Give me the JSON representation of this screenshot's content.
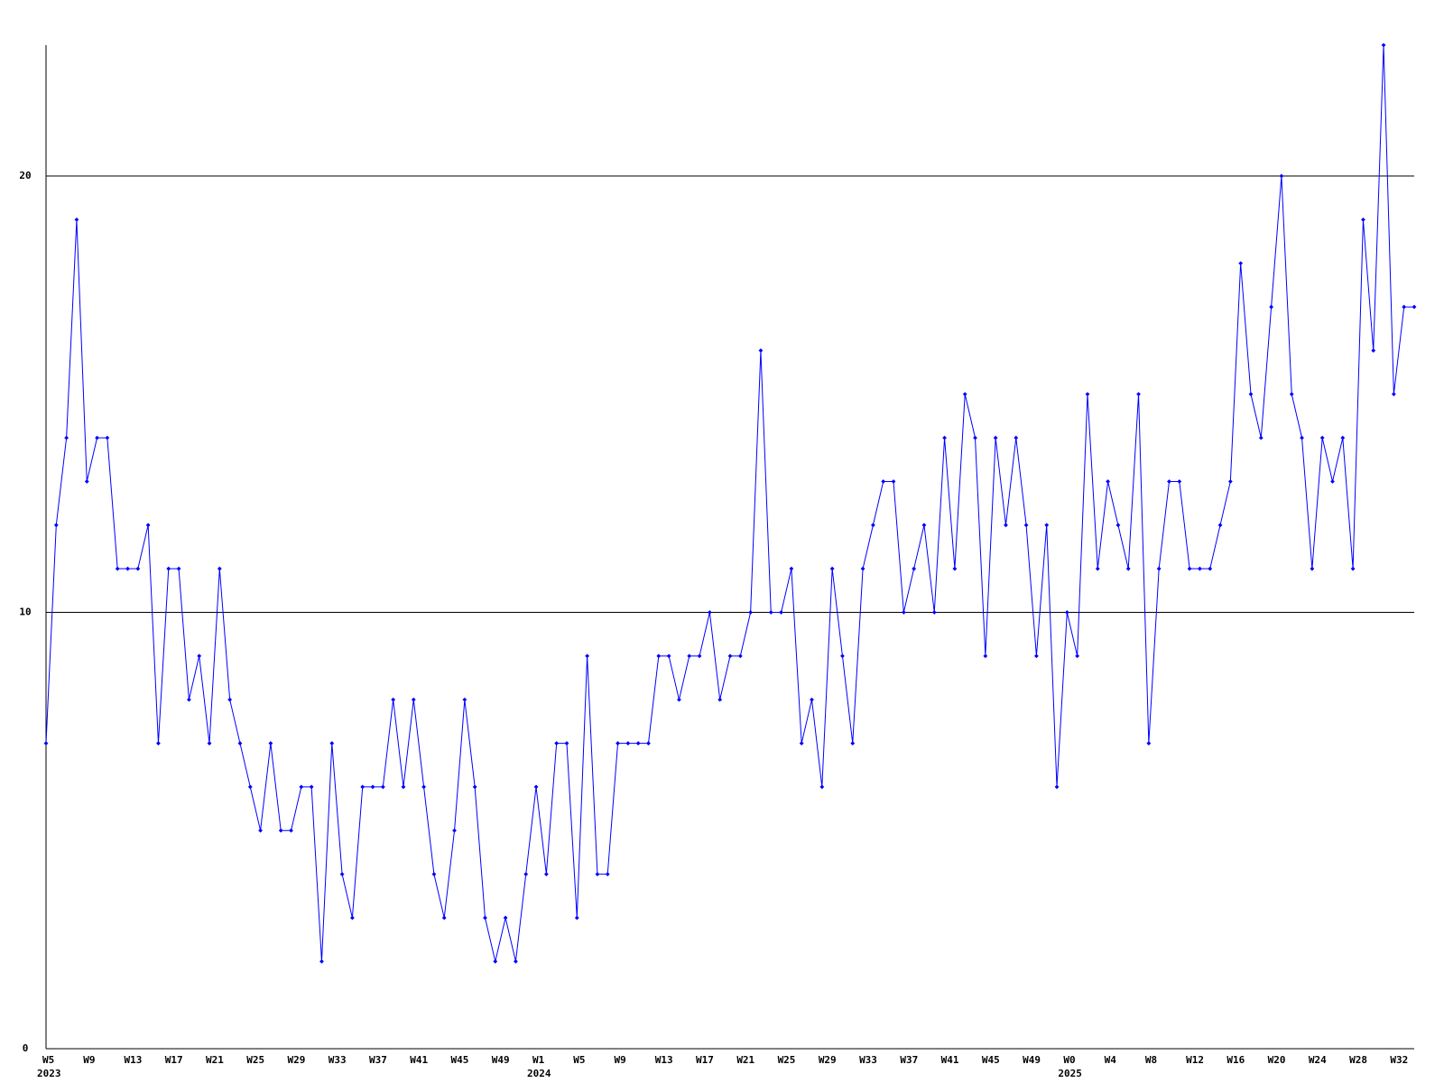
{
  "chart_data": {
    "type": "line",
    "color": "#0000ff",
    "grid": true,
    "ylim": [
      0,
      23
    ],
    "yticks": [
      0,
      10,
      20
    ],
    "categories": [
      "W5",
      null,
      null,
      null,
      "W9",
      null,
      null,
      null,
      "W13",
      null,
      null,
      null,
      "W17",
      null,
      null,
      null,
      "W21",
      null,
      null,
      null,
      "W25",
      null,
      null,
      null,
      "W29",
      null,
      null,
      null,
      "W33",
      null,
      null,
      null,
      "W37",
      null,
      null,
      null,
      "W41",
      null,
      null,
      null,
      "W45",
      null,
      null,
      null,
      "W49",
      null,
      null,
      null,
      "W1",
      null,
      null,
      null,
      "W5",
      null,
      null,
      null,
      "W9",
      null,
      null,
      null,
      "W13",
      null,
      null,
      null,
      "W17",
      null,
      null,
      null,
      "W21",
      null,
      null,
      null,
      "W25",
      null,
      null,
      null,
      "W29",
      null,
      null,
      null,
      "W33",
      null,
      null,
      null,
      "W37",
      null,
      null,
      null,
      "W41",
      null,
      null,
      null,
      "W45",
      null,
      null,
      null,
      "W49",
      null,
      null,
      null,
      "W0",
      null,
      null,
      null,
      "W4",
      null,
      null,
      null,
      "W8",
      null,
      null,
      null,
      "W12",
      null,
      null,
      null,
      "W16",
      null,
      null,
      null,
      "W20",
      null,
      null,
      null,
      "W24",
      null,
      null,
      null,
      "W28",
      null,
      null,
      null,
      "W32",
      null,
      null
    ],
    "category_years": [
      "2023",
      null,
      null,
      null,
      null,
      null,
      null,
      null,
      null,
      null,
      null,
      null,
      null,
      null,
      null,
      null,
      null,
      null,
      null,
      null,
      null,
      null,
      null,
      null,
      null,
      null,
      null,
      null,
      null,
      null,
      null,
      null,
      null,
      null,
      null,
      null,
      null,
      null,
      null,
      null,
      null,
      null,
      null,
      null,
      null,
      null,
      null,
      null,
      "2024",
      null,
      null,
      null,
      null,
      null,
      null,
      null,
      null,
      null,
      null,
      null,
      null,
      null,
      null,
      null,
      null,
      null,
      null,
      null,
      null,
      null,
      null,
      null,
      null,
      null,
      null,
      null,
      null,
      null,
      null,
      null,
      null,
      null,
      null,
      null,
      null,
      null,
      null,
      null,
      null,
      null,
      null,
      null,
      null,
      null,
      null,
      null,
      null,
      null,
      null,
      null,
      "2025",
      null,
      null,
      null,
      null,
      null,
      null,
      null,
      null,
      null,
      null,
      null,
      null,
      null,
      null,
      null,
      null,
      null,
      null,
      null,
      null,
      null,
      null,
      null,
      null,
      null,
      null,
      null,
      null,
      null,
      null,
      null,
      null,
      null,
      null
    ],
    "values": [
      7,
      12,
      14,
      19,
      13,
      14,
      14,
      11,
      11,
      11,
      12,
      7,
      11,
      11,
      8,
      9,
      7,
      11,
      8,
      7,
      6,
      5,
      7,
      5,
      5,
      6,
      6,
      2,
      7,
      4,
      3,
      6,
      6,
      6,
      8,
      6,
      8,
      6,
      4,
      3,
      5,
      8,
      6,
      3,
      2,
      3,
      2,
      4,
      6,
      4,
      7,
      7,
      3,
      9,
      4,
      4,
      7,
      7,
      7,
      7,
      9,
      9,
      8,
      9,
      9,
      10,
      8,
      9,
      9,
      10,
      16,
      10,
      10,
      11,
      7,
      8,
      6,
      11,
      9,
      7,
      11,
      12,
      13,
      13,
      10,
      11,
      12,
      10,
      14,
      11,
      15,
      14,
      9,
      14,
      12,
      14,
      12,
      9,
      12,
      6,
      10,
      9,
      15,
      11,
      13,
      12,
      11,
      15,
      7,
      11,
      13,
      13,
      11,
      11,
      11,
      12,
      13,
      18,
      15,
      14,
      17,
      20,
      15,
      14,
      11,
      14,
      13,
      14,
      11,
      19,
      16,
      23,
      15,
      17,
      17
    ]
  }
}
